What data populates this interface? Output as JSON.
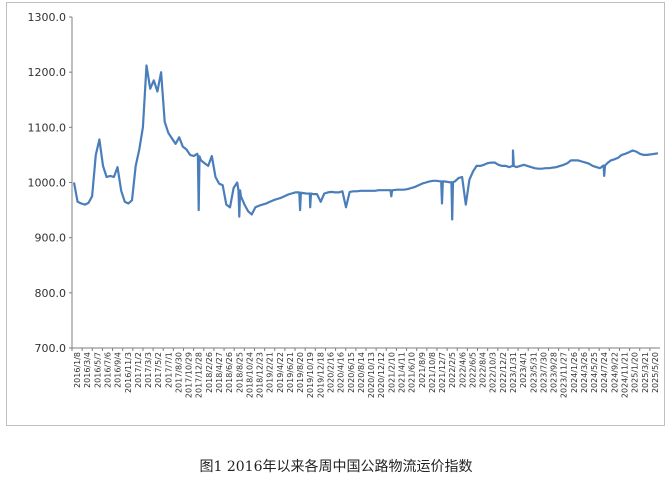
{
  "caption": "图1 2016年以来各周中国公路物流运价指数",
  "chart_data": {
    "type": "line",
    "title": "",
    "xlabel": "",
    "ylabel": "",
    "ylim": [
      700,
      1300
    ],
    "yticks": [
      "700.0",
      "800.0",
      "900.0",
      "1000.0",
      "1100.0",
      "1200.0",
      "1300.0"
    ],
    "grid": false,
    "line_color": "#4a7ebb",
    "x_tick_labels": [
      "2016/1/8",
      "2016/3/4",
      "2016/5/7",
      "2016/7/6",
      "2016/9/4",
      "2016/11/3",
      "2017/1/2",
      "2017/3/3",
      "2017/5/2",
      "2017/7/1",
      "2017/8/30",
      "2017/10/29",
      "2017/12/28",
      "2018/2/26",
      "2018/4/27",
      "2018/6/26",
      "2018/8/25",
      "2018/10/24",
      "2018/12/23",
      "2019/2/21",
      "2019/4/22",
      "2019/6/21",
      "2019/8/20",
      "2019/10/19",
      "2019/12/18",
      "2020/2/16",
      "2020/4/16",
      "2020/6/15",
      "2020/8/14",
      "2020/10/13",
      "2020/12/12",
      "2021/2/10",
      "2021/4/11",
      "2021/6/10",
      "2021/8/9",
      "2021/10/8",
      "2021/12/7",
      "2022/2/5",
      "2022/4/6",
      "2022/6/5",
      "2022/8/4",
      "2022/10/3",
      "2022/12/2",
      "2023/1/31",
      "2023/4/1",
      "2023/5/31",
      "2023/7/30",
      "2023/9/28",
      "2023/11/27",
      "2024/1/26",
      "2024/3/26",
      "2024/5/25",
      "2024/7/24",
      "2024/9/22",
      "2024/11/21",
      "2025/1/20",
      "2025/3/21",
      "2025/5/20"
    ],
    "series": [
      {
        "values": [
          1000,
          965,
          962,
          960,
          963,
          975,
          1050,
          1078,
          1030,
          1010,
          1012,
          1010,
          1028,
          985,
          965,
          962,
          968,
          1030,
          1060,
          1100,
          1212,
          1170,
          1185,
          1165,
          1200,
          1110,
          1090,
          1080,
          1070,
          1082,
          1065,
          1060,
          1050,
          1048,
          1052,
          1040,
          1035,
          1030,
          1048,
          1010,
          998,
          995,
          960,
          955,
          990,
          1000,
          975,
          960,
          948,
          942,
          955,
          958,
          960,
          962,
          965,
          968,
          970,
          972,
          975,
          978,
          980,
          982,
          982,
          981,
          980,
          980,
          979,
          979,
          965,
          980,
          982,
          983,
          982,
          982,
          984,
          955,
          983,
          984,
          984,
          985,
          985,
          985,
          985,
          985,
          986,
          986,
          986,
          986,
          986,
          987,
          987,
          987,
          988,
          990,
          992,
          995,
          998,
          1000,
          1002,
          1003,
          1003,
          1002,
          1002,
          1001,
          1000,
          1002,
          1008,
          1010,
          960,
          1005,
          1020,
          1030,
          1030,
          1032,
          1035,
          1036,
          1036,
          1032,
          1030,
          1030,
          1028,
          1030,
          1028,
          1030,
          1032,
          1030,
          1028,
          1026,
          1025,
          1025,
          1026,
          1026,
          1027,
          1028,
          1030,
          1032,
          1035,
          1040,
          1040,
          1040,
          1038,
          1036,
          1034,
          1030,
          1028,
          1026,
          1030,
          1035,
          1040,
          1042,
          1045,
          1050,
          1052,
          1055,
          1058,
          1056,
          1052,
          1050,
          1050,
          1051,
          1052,
          1053
        ],
        "spikes": [
          {
            "x": "2017/12/28",
            "y": 950
          },
          {
            "x": "2018/8/25",
            "y": 938
          },
          {
            "x": "2019/8/20",
            "y": 950
          },
          {
            "x": "2019/10/19",
            "y": 955
          },
          {
            "x": "2021/2/10",
            "y": 975
          },
          {
            "x": "2021/12/7",
            "y": 962
          },
          {
            "x": "2022/2/5",
            "y": 933
          },
          {
            "x": "2023/1/31",
            "y": 1058
          },
          {
            "x": "2024/7/24",
            "y": 1012
          }
        ]
      }
    ]
  }
}
